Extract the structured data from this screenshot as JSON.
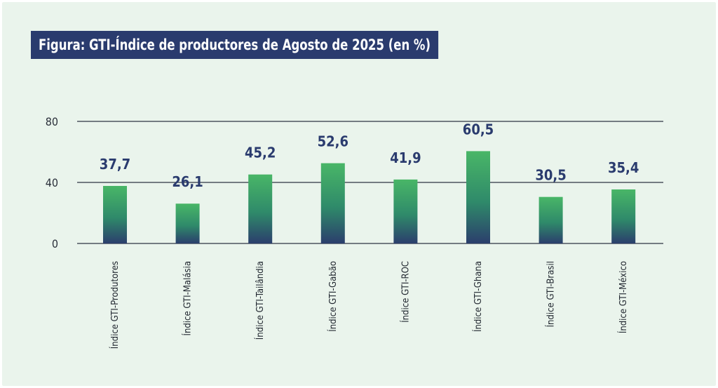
{
  "title": "Figura: GTI-Índice de productores de Agosto de 2025 (en %)",
  "colors": {
    "panel_bg": "#eaf4ec",
    "title_bg": "#2a3b6e",
    "bar_top": "#49b667",
    "bar_bottom": "#2b3e6c",
    "value_label": "#2a3b6e",
    "grid": "#2f3543"
  },
  "chart_data": {
    "type": "bar",
    "title": "Figura: GTI-Índice de productores de Agosto de 2025 (en %)",
    "categories": [
      "Índice GTI-Produtores",
      "Índice GTI-Malásia",
      "Índice GTI-Tailândia",
      "Índice GTI-Gabão",
      "Índice GTI-ROC",
      "Índice GTI-Ghana",
      "Índice GTI-Brasil",
      "Índice GTI-México"
    ],
    "values": [
      37.7,
      26.1,
      45.2,
      52.6,
      41.9,
      60.5,
      30.5,
      35.4
    ],
    "value_labels": [
      "37,7",
      "26,1",
      "45,2",
      "52,6",
      "41,9",
      "60,5",
      "30,5",
      "35,4"
    ],
    "yticks": [
      0,
      40,
      80
    ],
    "ytick_labels": [
      "0",
      "40",
      "80"
    ],
    "ylim": [
      0,
      80
    ],
    "grid": true,
    "legend": "none"
  }
}
